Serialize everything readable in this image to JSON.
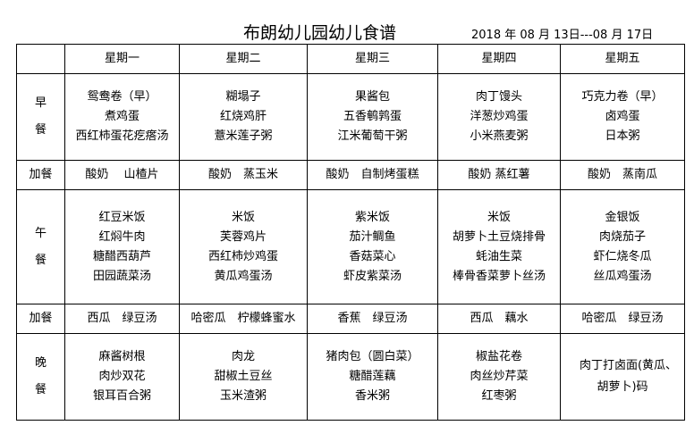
{
  "title": "布朗幼儿园幼儿食谱",
  "date_range": "2018 年 08 月 13日---08 月 17日",
  "days": [
    "星期一",
    "星期二",
    "星期三",
    "星期四",
    "星期五"
  ],
  "rows": [
    {
      "label": [
        "早",
        "餐"
      ],
      "cells": [
        [
          "鸳鸯卷（早）",
          "煮鸡蛋",
          "西红柿蛋花疙瘩汤"
        ],
        [
          "糊塌子",
          "红烧鸡肝",
          "薏米莲子粥"
        ],
        [
          "果酱包",
          "五香鹌鹑蛋",
          "江米葡萄干粥"
        ],
        [
          "肉丁馒头",
          "洋葱炒鸡蛋",
          "小米燕麦粥"
        ],
        [
          "巧克力卷（早）",
          "卤鸡蛋",
          "日本粥"
        ]
      ]
    },
    {
      "label": [
        "加餐"
      ],
      "cells": [
        [
          "酸奶　 山楂片"
        ],
        [
          "酸奶　蒸玉米"
        ],
        [
          "酸奶　自制烤蛋糕"
        ],
        [
          "酸奶 蒸红薯"
        ],
        [
          "酸奶　蒸南瓜"
        ]
      ]
    },
    {
      "label": [
        "午",
        "餐"
      ],
      "cells": [
        [
          "红豆米饭",
          "红焖牛肉",
          "糖醋西葫芦",
          "田园蔬菜汤"
        ],
        [
          "米饭",
          "芙蓉鸡片",
          "西红柿炒鸡蛋",
          "黄瓜鸡蛋汤"
        ],
        [
          "紫米饭",
          "茄汁鲷鱼",
          "香菇菜心",
          "虾皮紫菜汤"
        ],
        [
          "米饭",
          "胡萝卜土豆烧排骨",
          "蚝油生菜",
          "棒骨香菜萝卜丝汤"
        ],
        [
          "金银饭",
          "肉烧茄子",
          "虾仁烧冬瓜",
          "丝瓜鸡蛋汤"
        ]
      ]
    },
    {
      "label": [
        "加餐"
      ],
      "cells": [
        [
          "西瓜　绿豆汤"
        ],
        [
          "哈密瓜　柠檬蜂蜜水"
        ],
        [
          "香蕉　绿豆汤"
        ],
        [
          "西瓜　藕水"
        ],
        [
          "哈密瓜　绿豆汤"
        ]
      ]
    },
    {
      "label": [
        "晚",
        "餐"
      ],
      "cells": [
        [
          "麻酱树根",
          "肉炒双花",
          "银耳百合粥"
        ],
        [
          "肉龙",
          "甜椒土豆丝",
          "玉米渣粥"
        ],
        [
          "猪肉包（圆白菜）",
          "糖醋莲藕",
          "香米粥"
        ],
        [
          "椒盐花卷",
          "肉丝炒芹菜",
          "红枣粥"
        ],
        [
          "　肉丁打卤面(黄瓜、胡萝卜)码"
        ]
      ]
    }
  ]
}
